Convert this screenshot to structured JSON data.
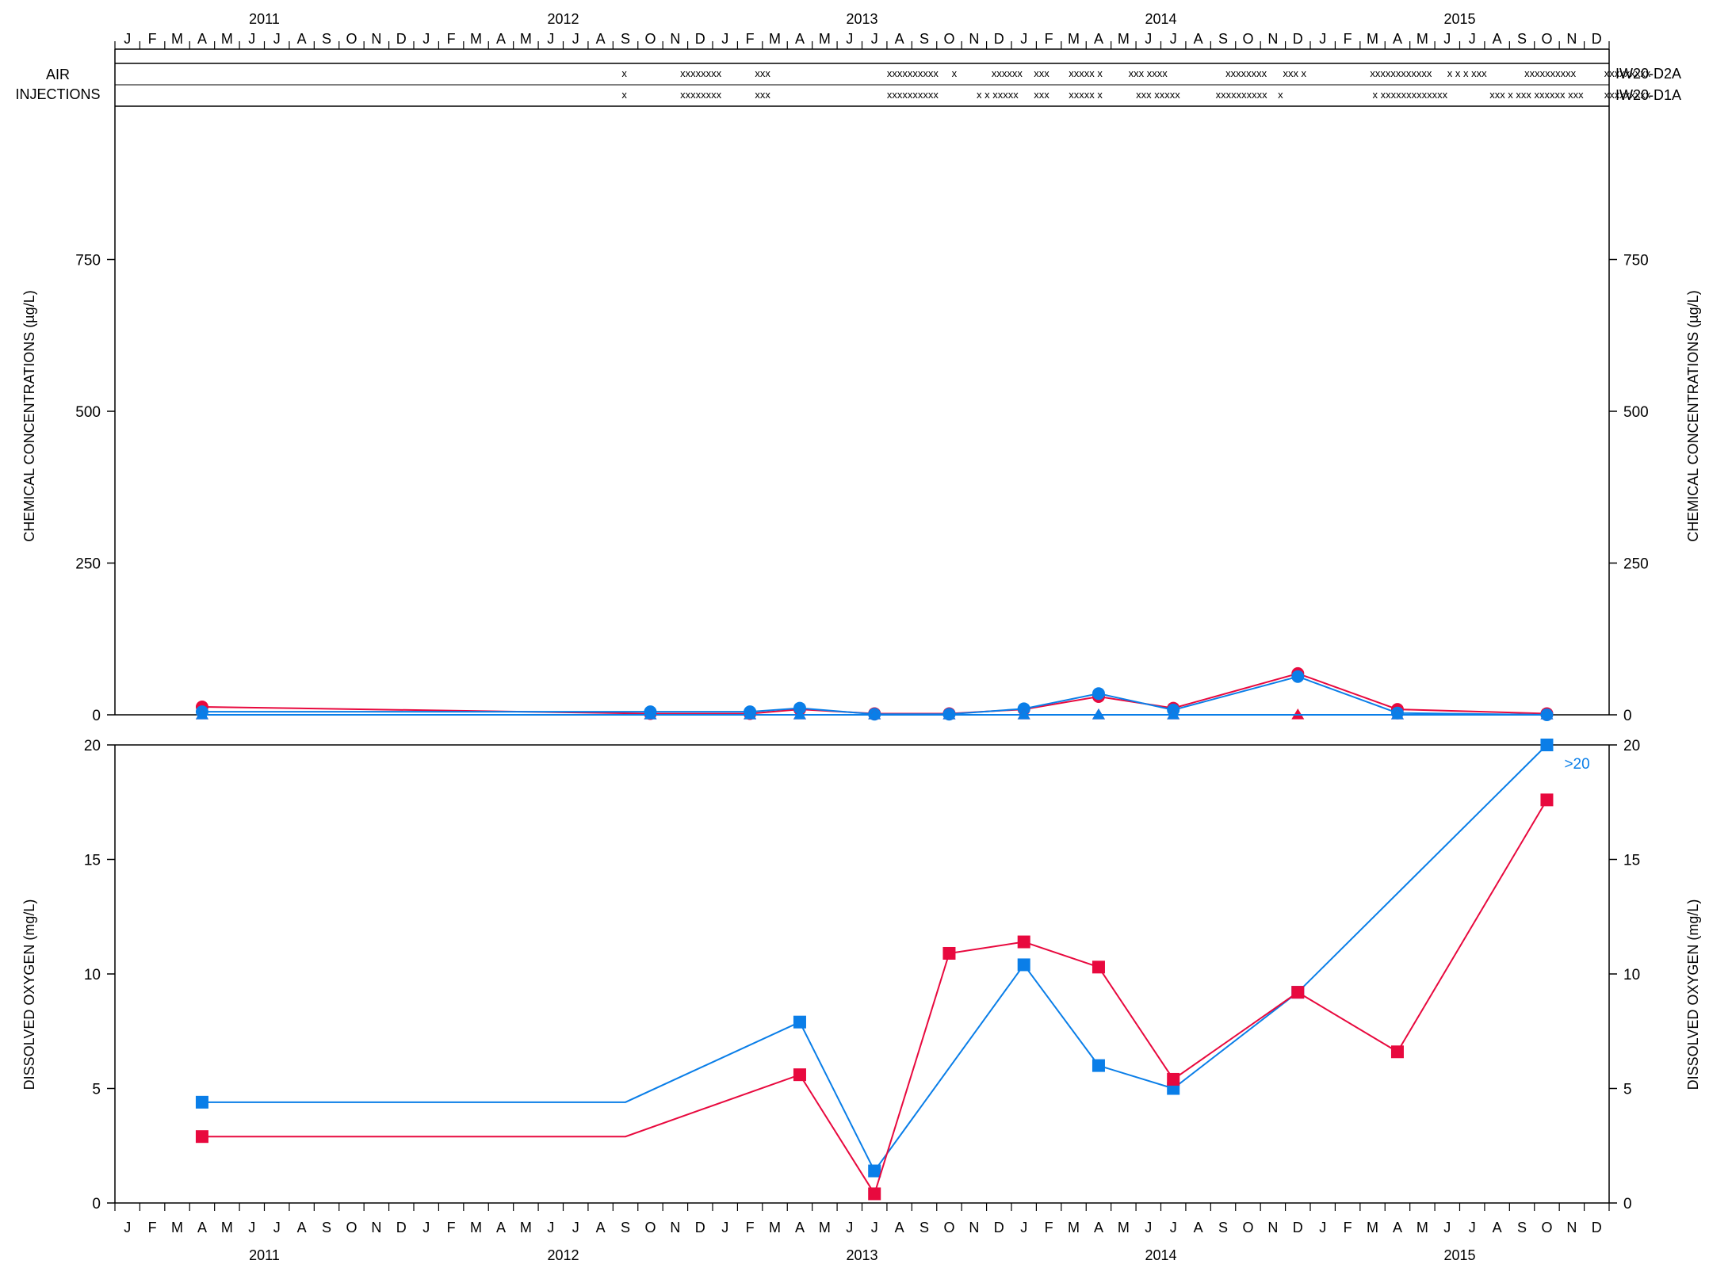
{
  "colors": {
    "d2a": "#0a7ee8",
    "d1a": "#e8093e",
    "axis": "#000000"
  },
  "axis_labels": {
    "left_top": "CHEMICAL CONCENTRATIONS (µg/L)",
    "right_top": "CHEMICAL CONCENTRATIONS (µg/L)",
    "left_bottom": "DISSOLVED OXYGEN (mg/L)",
    "right_bottom": "DISSOLVED OXYGEN (mg/L)"
  },
  "air_injections": {
    "label_line1": "AIR",
    "label_line2": "INJECTIONS",
    "rows": [
      {
        "well": "IW20-D2A",
        "color_key": "d2a",
        "marks": [
          {
            "m": 20.35,
            "t": "x"
          },
          {
            "m": 22.7,
            "t": "xxxxxxxx"
          },
          {
            "m": 25.7,
            "t": "xxx"
          },
          {
            "m": 31.0,
            "t": "xxxxxxxxxx"
          },
          {
            "m": 33.6,
            "t": "x"
          },
          {
            "m": 35.2,
            "t": "xxxxxx"
          },
          {
            "m": 36.9,
            "t": "xxx"
          },
          {
            "m": 38.3,
            "t": "xxxxx x"
          },
          {
            "m": 40.7,
            "t": "xxx xxxx"
          },
          {
            "m": 44.6,
            "t": "xxxxxxxx"
          },
          {
            "m": 46.9,
            "t": "xxx x"
          },
          {
            "m": 50.4,
            "t": "xxxxxxxxxxxx"
          },
          {
            "m": 53.5,
            "t": "x x x xxx"
          },
          {
            "m": 56.6,
            "t": "xxxxxxxxxx"
          },
          {
            "m": 59.8,
            "t": "xxxxxxxxx"
          }
        ]
      },
      {
        "well": "IW20-D1A",
        "color_key": "d1a",
        "marks": [
          {
            "m": 20.35,
            "t": "x"
          },
          {
            "m": 22.7,
            "t": "xxxxxxxx"
          },
          {
            "m": 25.7,
            "t": "xxx"
          },
          {
            "m": 31.0,
            "t": "xxxxxxxxxx"
          },
          {
            "m": 34.6,
            "t": "x x xxxxx"
          },
          {
            "m": 36.9,
            "t": "xxx"
          },
          {
            "m": 38.3,
            "t": "xxxxx x"
          },
          {
            "m": 41.0,
            "t": "xxx xxxxx"
          },
          {
            "m": 44.2,
            "t": "xxxxxxxxxx"
          },
          {
            "m": 46.7,
            "t": "x"
          },
          {
            "m": 50.5,
            "t": "x xxxxxxxxxxxxx"
          },
          {
            "m": 55.2,
            "t": "xxx x xxx xxxxxx xxx"
          },
          {
            "m": 59.8,
            "t": "xxxxxxxxx"
          }
        ]
      }
    ]
  },
  "chart_data": [
    {
      "type": "line",
      "panel": "chemical",
      "ylabel": "CHEMICAL CONCENTRATIONS (µg/L)",
      "ylim": [
        0,
        1000
      ],
      "yticks": [
        0,
        250,
        500,
        750
      ],
      "x_axis": {
        "start": "2011-01",
        "end": "2015-12",
        "month_labels": [
          "J",
          "F",
          "M",
          "A",
          "M",
          "J",
          "J",
          "A",
          "S",
          "O",
          "N",
          "D"
        ],
        "years": [
          "2011",
          "2012",
          "2013",
          "2014",
          "2015"
        ]
      },
      "series": [
        {
          "color_key": "d1a",
          "marker": "circle",
          "points": [
            {
              "date": "2011-04",
              "y": 13
            },
            {
              "date": "2012-10",
              "y": 2
            },
            {
              "date": "2013-02",
              "y": 2
            },
            {
              "date": "2013-04",
              "y": 9
            },
            {
              "date": "2013-07",
              "y": 2
            },
            {
              "date": "2013-10",
              "y": 2
            },
            {
              "date": "2014-01",
              "y": 9
            },
            {
              "date": "2014-04",
              "y": 30
            },
            {
              "date": "2014-07",
              "y": 11
            },
            {
              "date": "2014-12",
              "y": 68
            },
            {
              "date": "2015-04",
              "y": 9
            },
            {
              "date": "2015-10",
              "y": 2
            }
          ]
        },
        {
          "color_key": "d2a",
          "marker": "circle",
          "points": [
            {
              "date": "2011-04",
              "y": 5
            },
            {
              "date": "2012-10",
              "y": 5
            },
            {
              "date": "2013-02",
              "y": 5
            },
            {
              "date": "2013-04",
              "y": 11
            },
            {
              "date": "2013-07",
              "y": 1
            },
            {
              "date": "2013-10",
              "y": 1
            },
            {
              "date": "2014-01",
              "y": 10
            },
            {
              "date": "2014-04",
              "y": 35
            },
            {
              "date": "2014-07",
              "y": 8
            },
            {
              "date": "2014-12",
              "y": 63
            },
            {
              "date": "2015-04",
              "y": 3
            },
            {
              "date": "2015-10",
              "y": 0
            }
          ]
        },
        {
          "color_key": "d1a",
          "marker": "triangle",
          "points": [
            {
              "date": "2011-04",
              "y": 0
            },
            {
              "date": "2012-10",
              "y": 0
            },
            {
              "date": "2013-02",
              "y": 0
            },
            {
              "date": "2013-04",
              "y": 0
            },
            {
              "date": "2013-07",
              "y": 0
            },
            {
              "date": "2013-10",
              "y": 0
            },
            {
              "date": "2014-01",
              "y": 0
            },
            {
              "date": "2014-04",
              "y": 0
            },
            {
              "date": "2014-07",
              "y": 0
            },
            {
              "date": "2014-12",
              "y": 0
            },
            {
              "date": "2015-04",
              "y": 0
            },
            {
              "date": "2015-10",
              "y": 0
            }
          ]
        },
        {
          "color_key": "d2a",
          "marker": "triangle",
          "points": [
            {
              "date": "2011-04",
              "y": 0
            },
            {
              "date": "2012-10",
              "y": 0
            },
            {
              "date": "2013-02",
              "y": 0
            },
            {
              "date": "2013-04",
              "y": 0
            },
            {
              "date": "2013-07",
              "y": 0
            },
            {
              "date": "2013-10",
              "y": 0
            },
            {
              "date": "2014-01",
              "y": 0
            },
            {
              "date": "2014-04",
              "y": 0
            },
            {
              "date": "2014-07",
              "y": 0
            },
            {
              "date": "2015-04",
              "y": 0
            },
            {
              "date": "2015-10",
              "y": 0
            }
          ]
        }
      ]
    },
    {
      "type": "line",
      "panel": "oxygen",
      "ylabel": "DISSOLVED OXYGEN (mg/L)",
      "ylim": [
        0,
        20
      ],
      "yticks": [
        0,
        5,
        10,
        15,
        20
      ],
      "x_axis": {
        "start": "2011-01",
        "end": "2015-12",
        "month_labels": [
          "J",
          "F",
          "M",
          "A",
          "M",
          "J",
          "J",
          "A",
          "S",
          "O",
          "N",
          "D"
        ],
        "years": [
          "2011",
          "2012",
          "2013",
          "2014",
          "2015"
        ]
      },
      "series": [
        {
          "color_key": "d2a",
          "marker": "square",
          "line_points": [
            {
              "date": "2011-04",
              "y": 4.4
            },
            {
              "date": "2012-09",
              "y": 4.4
            },
            {
              "date": "2013-04",
              "y": 7.9
            },
            {
              "date": "2013-07",
              "y": 1.4
            },
            {
              "date": "2014-01",
              "y": 10.4
            },
            {
              "date": "2014-04",
              "y": 6.0
            },
            {
              "date": "2014-07",
              "y": 5.0
            },
            {
              "date": "2014-12",
              "y": 9.2
            },
            {
              "date": "2015-10",
              "y": 20
            }
          ],
          "markers": [
            {
              "date": "2011-04",
              "y": 4.4
            },
            {
              "date": "2013-04",
              "y": 7.9
            },
            {
              "date": "2013-07",
              "y": 1.4
            },
            {
              "date": "2014-01",
              "y": 10.4
            },
            {
              "date": "2014-04",
              "y": 6.0
            },
            {
              "date": "2014-07",
              "y": 5.0
            },
            {
              "date": "2014-12",
              "y": 9.2
            },
            {
              "date": "2015-10",
              "y": 20
            }
          ]
        },
        {
          "color_key": "d1a",
          "marker": "square",
          "line_points": [
            {
              "date": "2011-04",
              "y": 2.9
            },
            {
              "date": "2012-09",
              "y": 2.9
            },
            {
              "date": "2013-04",
              "y": 5.6
            },
            {
              "date": "2013-07",
              "y": 0.4
            },
            {
              "date": "2013-10",
              "y": 10.9
            },
            {
              "date": "2014-01",
              "y": 11.4
            },
            {
              "date": "2014-04",
              "y": 10.3
            },
            {
              "date": "2014-07",
              "y": 5.4
            },
            {
              "date": "2014-12",
              "y": 9.2
            },
            {
              "date": "2015-04",
              "y": 6.6
            },
            {
              "date": "2015-10",
              "y": 17.6
            }
          ],
          "markers": [
            {
              "date": "2011-04",
              "y": 2.9
            },
            {
              "date": "2013-04",
              "y": 5.6
            },
            {
              "date": "2013-07",
              "y": 0.4
            },
            {
              "date": "2013-10",
              "y": 10.9
            },
            {
              "date": "2014-01",
              "y": 11.4
            },
            {
              "date": "2014-04",
              "y": 10.3
            },
            {
              "date": "2014-07",
              "y": 5.4
            },
            {
              "date": "2014-12",
              "y": 9.2
            },
            {
              "date": "2015-04",
              "y": 6.6
            },
            {
              "date": "2015-10",
              "y": 17.6
            }
          ]
        }
      ],
      "annotations": [
        {
          "text": ">20",
          "date": "2015-10",
          "y": 20,
          "color_key": "d2a"
        }
      ]
    }
  ]
}
